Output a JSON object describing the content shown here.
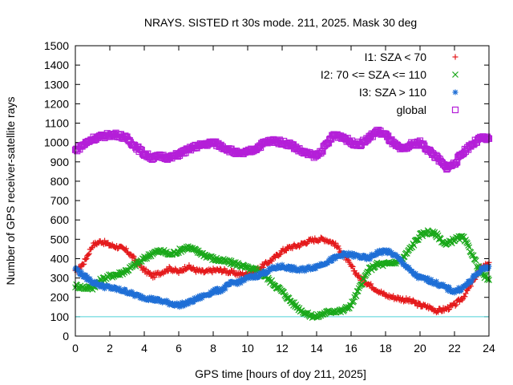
{
  "chart_data": {
    "type": "scatter",
    "title": "NRAYS. SISTED rt 30s mode. 211, 2025. Mask 30 deg",
    "xlabel": "GPS time [hours of doy 211, 2025]",
    "ylabel": "Number of GPS receiver-satellite rays",
    "xlim": [
      0,
      24
    ],
    "ylim": [
      0,
      1500
    ],
    "xticks": [
      "0",
      "2",
      "4",
      "6",
      "8",
      "10",
      "12",
      "14",
      "16",
      "18",
      "20",
      "22",
      "24"
    ],
    "yticks": [
      "0",
      "100",
      "200",
      "300",
      "400",
      "500",
      "600",
      "700",
      "800",
      "900",
      "1000",
      "1100",
      "1200",
      "1300",
      "1400",
      "1500"
    ],
    "threshold_line": {
      "y": 100,
      "color": "#4dd2d6"
    },
    "series": [
      {
        "name": "I1: SZA < 70",
        "color": "#e41a1c",
        "marker": "plus",
        "x": [
          0,
          0.5,
          1,
          1.5,
          2,
          2.5,
          3,
          3.5,
          4,
          4.5,
          5,
          5.5,
          6,
          6.5,
          7,
          7.5,
          8,
          8.5,
          9,
          9.5,
          10,
          10.5,
          11,
          11.5,
          12,
          12.5,
          13,
          13.5,
          14,
          14.5,
          15,
          15.5,
          16,
          16.5,
          17,
          17.5,
          18,
          18.5,
          19,
          19.5,
          20,
          20.5,
          21,
          21.5,
          22,
          22.5,
          23,
          23.5,
          24
        ],
        "y": [
          330,
          380,
          470,
          490,
          470,
          460,
          440,
          390,
          340,
          310,
          330,
          350,
          330,
          360,
          340,
          330,
          340,
          340,
          330,
          320,
          320,
          340,
          370,
          400,
          440,
          460,
          470,
          490,
          500,
          500,
          480,
          430,
          360,
          300,
          270,
          240,
          210,
          200,
          190,
          180,
          160,
          150,
          130,
          140,
          160,
          200,
          270,
          350,
          380
        ]
      },
      {
        "name": "I2: 70 <= SZA <= 110",
        "color": "#1aa81a",
        "marker": "cross",
        "x": [
          0,
          0.5,
          1,
          1.5,
          2,
          2.5,
          3,
          3.5,
          4,
          4.5,
          5,
          5.5,
          6,
          6.5,
          7,
          7.5,
          8,
          8.5,
          9,
          9.5,
          10,
          10.5,
          11,
          11.5,
          12,
          12.5,
          13,
          13.5,
          14,
          14.5,
          15,
          15.5,
          16,
          16.5,
          17,
          17.5,
          18,
          18.5,
          19,
          19.5,
          20,
          20.5,
          21,
          21.5,
          22,
          22.5,
          23,
          23.5,
          24
        ],
        "y": [
          260,
          250,
          250,
          290,
          310,
          320,
          340,
          370,
          400,
          430,
          440,
          420,
          440,
          460,
          440,
          420,
          400,
          390,
          380,
          370,
          350,
          340,
          310,
          270,
          230,
          180,
          140,
          110,
          100,
          120,
          130,
          130,
          160,
          250,
          340,
          370,
          370,
          380,
          400,
          460,
          520,
          540,
          520,
          470,
          500,
          510,
          430,
          330,
          290
        ]
      },
      {
        "name": "I3: SZA > 110",
        "color": "#1f6fd6",
        "marker": "star",
        "x": [
          0,
          0.5,
          1,
          1.5,
          2,
          2.5,
          3,
          3.5,
          4,
          4.5,
          5,
          5.5,
          6,
          6.5,
          7,
          7.5,
          8,
          8.5,
          9,
          9.5,
          10,
          10.5,
          11,
          11.5,
          12,
          12.5,
          13,
          13.5,
          14,
          14.5,
          15,
          15.5,
          16,
          16.5,
          17,
          17.5,
          18,
          18.5,
          19,
          19.5,
          20,
          20.5,
          21,
          21.5,
          22,
          22.5,
          23,
          23.5,
          24
        ],
        "y": [
          350,
          310,
          280,
          260,
          250,
          240,
          230,
          210,
          200,
          190,
          180,
          170,
          160,
          170,
          190,
          210,
          230,
          240,
          270,
          280,
          300,
          310,
          330,
          350,
          360,
          350,
          340,
          350,
          360,
          380,
          400,
          420,
          420,
          410,
          400,
          430,
          440,
          420,
          380,
          330,
          300,
          290,
          270,
          250,
          230,
          250,
          290,
          340,
          360
        ]
      },
      {
        "name": "global",
        "color": "#b41fd8",
        "marker": "box",
        "x": [
          0,
          0.5,
          1,
          1.5,
          2,
          2.5,
          3,
          3.5,
          4,
          4.5,
          5,
          5.5,
          6,
          6.5,
          7,
          7.5,
          8,
          8.5,
          9,
          9.5,
          10,
          10.5,
          11,
          11.5,
          12,
          12.5,
          13,
          13.5,
          14,
          14.5,
          15,
          15.5,
          16,
          16.5,
          17,
          17.5,
          18,
          18.5,
          19,
          19.5,
          20,
          20.5,
          21,
          21.5,
          22,
          22.5,
          23,
          23.5,
          24
        ],
        "y": [
          960,
          990,
          1020,
          1030,
          1040,
          1040,
          1020,
          980,
          940,
          920,
          930,
          920,
          940,
          960,
          980,
          990,
          1000,
          980,
          960,
          940,
          950,
          970,
          1000,
          1010,
          1000,
          990,
          960,
          940,
          930,
          980,
          1040,
          1030,
          1000,
          990,
          1020,
          1060,
          1040,
          990,
          960,
          990,
          1000,
          960,
          920,
          870,
          890,
          950,
          990,
          1020,
          1020
        ]
      }
    ]
  }
}
